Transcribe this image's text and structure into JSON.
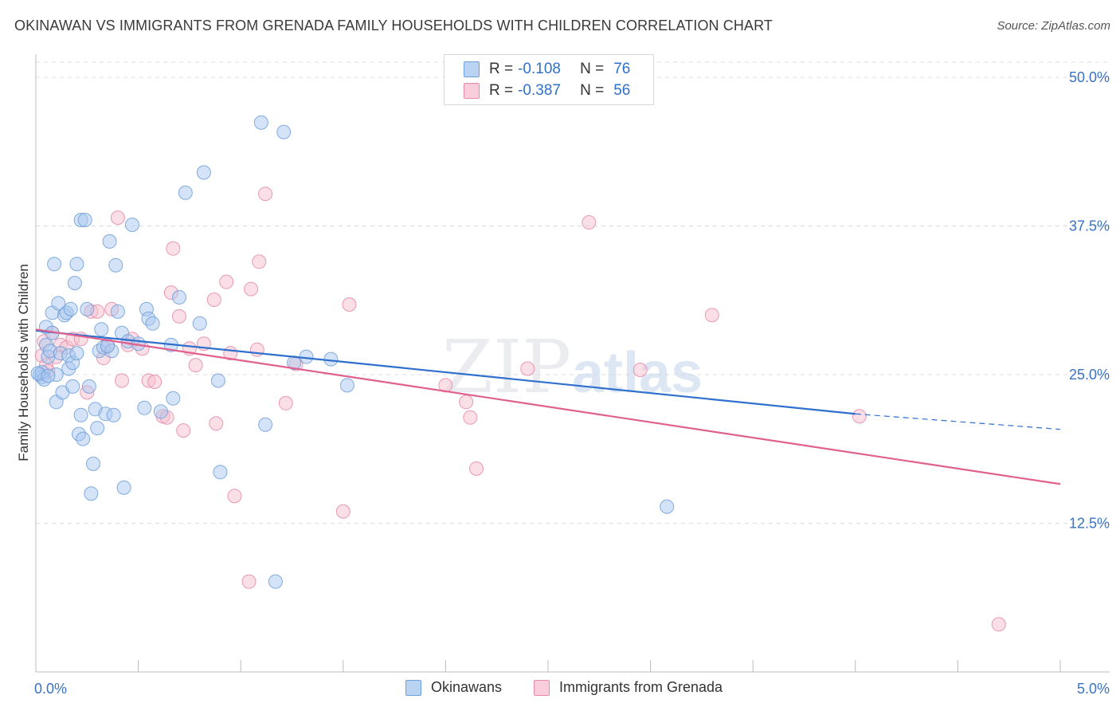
{
  "header": {
    "title": "OKINAWAN VS IMMIGRANTS FROM GRENADA FAMILY HOUSEHOLDS WITH CHILDREN CORRELATION CHART",
    "source": "Source: ZipAtlas.com"
  },
  "legend": {
    "rows": [
      {
        "r_label": "R =",
        "r_value": "-0.108",
        "n_label": "N =",
        "n_value": "76"
      },
      {
        "r_label": "R =",
        "r_value": "-0.387",
        "n_label": "N =",
        "n_value": "56"
      }
    ]
  },
  "bottom_legend": [
    "Okinawans",
    "Immigrants from Grenada"
  ],
  "watermark": {
    "zip": "ZIP",
    "atlas": "atlas"
  },
  "colors": {
    "blue_fill": "#a9c8f0",
    "blue_stroke": "#6d9fd8",
    "blue_line": "#2f6fce",
    "pink_fill": "#f6bfd0",
    "pink_stroke": "#e58aa8",
    "pink_line": "#e0608e",
    "axis_text": "#3a72c4",
    "grid": "#dcdcdc"
  },
  "chart_data": {
    "type": "scatter",
    "title": "OKINAWAN VS IMMIGRANTS FROM GRENADA FAMILY HOUSEHOLDS WITH CHILDREN CORRELATION CHART",
    "xlabel": "",
    "ylabel": "Family Households with Children",
    "xlim": [
      0,
      5
    ],
    "ylim": [
      0,
      52
    ],
    "x_tick_labels": [
      {
        "value": 0,
        "label": "0.0%"
      },
      {
        "value": 5,
        "label": "5.0%"
      }
    ],
    "y_tick_labels": [
      {
        "value": 12.5,
        "label": "12.5%"
      },
      {
        "value": 25,
        "label": "25.0%"
      },
      {
        "value": 37.5,
        "label": "37.5%"
      },
      {
        "value": 50,
        "label": "50.0%"
      }
    ],
    "grid": true,
    "legend_position": "top-center",
    "series": [
      {
        "name": "Okinawans",
        "color": "#a9c8f0",
        "trend": {
          "x": [
            0,
            4.0
          ],
          "y": [
            28.7,
            21.7
          ],
          "dashed_to": [
            5.0,
            20.4
          ]
        },
        "points": [
          [
            0.02,
            25.0
          ],
          [
            0.03,
            24.8
          ],
          [
            0.03,
            25.2
          ],
          [
            0.04,
            24.6
          ],
          [
            0.05,
            27.5
          ],
          [
            0.05,
            29.0
          ],
          [
            0.06,
            26.5
          ],
          [
            0.07,
            27.0
          ],
          [
            0.08,
            28.5
          ],
          [
            0.08,
            30.2
          ],
          [
            0.09,
            34.3
          ],
          [
            0.1,
            25.0
          ],
          [
            0.1,
            22.7
          ],
          [
            0.11,
            31.0
          ],
          [
            0.12,
            26.8
          ],
          [
            0.13,
            23.5
          ],
          [
            0.14,
            30.0
          ],
          [
            0.15,
            30.2
          ],
          [
            0.16,
            26.6
          ],
          [
            0.16,
            25.5
          ],
          [
            0.17,
            30.5
          ],
          [
            0.18,
            24.0
          ],
          [
            0.18,
            26.0
          ],
          [
            0.19,
            32.7
          ],
          [
            0.2,
            34.3
          ],
          [
            0.2,
            26.8
          ],
          [
            0.21,
            20.0
          ],
          [
            0.22,
            21.6
          ],
          [
            0.22,
            38.0
          ],
          [
            0.23,
            19.6
          ],
          [
            0.24,
            38.0
          ],
          [
            0.25,
            30.5
          ],
          [
            0.26,
            24.0
          ],
          [
            0.27,
            15.0
          ],
          [
            0.28,
            17.5
          ],
          [
            0.29,
            22.1
          ],
          [
            0.3,
            20.5
          ],
          [
            0.31,
            27.0
          ],
          [
            0.32,
            28.8
          ],
          [
            0.33,
            27.3
          ],
          [
            0.34,
            21.7
          ],
          [
            0.36,
            36.2
          ],
          [
            0.37,
            27.0
          ],
          [
            0.38,
            21.6
          ],
          [
            0.39,
            34.2
          ],
          [
            0.4,
            30.3
          ],
          [
            0.42,
            28.5
          ],
          [
            0.43,
            15.5
          ],
          [
            0.45,
            27.8
          ],
          [
            0.47,
            37.6
          ],
          [
            0.5,
            27.6
          ],
          [
            0.53,
            22.2
          ],
          [
            0.54,
            30.5
          ],
          [
            0.55,
            29.7
          ],
          [
            0.57,
            29.3
          ],
          [
            0.61,
            21.9
          ],
          [
            0.66,
            27.5
          ],
          [
            0.67,
            23.0
          ],
          [
            0.7,
            31.5
          ],
          [
            0.73,
            40.3
          ],
          [
            0.8,
            29.3
          ],
          [
            0.82,
            42.0
          ],
          [
            0.89,
            24.5
          ],
          [
            0.9,
            16.8
          ],
          [
            1.1,
            46.2
          ],
          [
            1.12,
            20.8
          ],
          [
            1.17,
            7.6
          ],
          [
            1.21,
            45.4
          ],
          [
            1.26,
            26.0
          ],
          [
            1.32,
            26.5
          ],
          [
            1.44,
            26.3
          ],
          [
            1.52,
            24.1
          ],
          [
            3.08,
            13.9
          ],
          [
            0.01,
            25.1
          ],
          [
            0.06,
            24.9
          ],
          [
            0.35,
            27.4
          ]
        ]
      },
      {
        "name": "Immigrants from Grenada",
        "color": "#f6bfd0",
        "trend": {
          "x": [
            0,
            5.0
          ],
          "y": [
            28.8,
            15.8
          ]
        },
        "points": [
          [
            0.03,
            26.6
          ],
          [
            0.04,
            27.8
          ],
          [
            0.05,
            25.8
          ],
          [
            0.06,
            25.3
          ],
          [
            0.08,
            28.5
          ],
          [
            0.1,
            26.5
          ],
          [
            0.12,
            27.5
          ],
          [
            0.15,
            27.3
          ],
          [
            0.18,
            28.0
          ],
          [
            0.22,
            28.0
          ],
          [
            0.25,
            23.5
          ],
          [
            0.27,
            30.3
          ],
          [
            0.3,
            30.3
          ],
          [
            0.33,
            26.4
          ],
          [
            0.35,
            27.5
          ],
          [
            0.37,
            30.5
          ],
          [
            0.4,
            38.2
          ],
          [
            0.42,
            24.5
          ],
          [
            0.45,
            27.5
          ],
          [
            0.47,
            28.0
          ],
          [
            0.52,
            27.2
          ],
          [
            0.55,
            24.5
          ],
          [
            0.58,
            24.4
          ],
          [
            0.62,
            21.5
          ],
          [
            0.64,
            21.4
          ],
          [
            0.66,
            31.9
          ],
          [
            0.67,
            35.6
          ],
          [
            0.7,
            29.9
          ],
          [
            0.72,
            20.3
          ],
          [
            0.75,
            27.2
          ],
          [
            0.78,
            25.8
          ],
          [
            0.82,
            27.6
          ],
          [
            0.87,
            31.3
          ],
          [
            0.88,
            20.9
          ],
          [
            0.93,
            32.8
          ],
          [
            0.95,
            26.8
          ],
          [
            0.97,
            14.8
          ],
          [
            1.04,
            7.6
          ],
          [
            1.05,
            32.2
          ],
          [
            1.08,
            27.1
          ],
          [
            1.09,
            34.5
          ],
          [
            1.12,
            40.2
          ],
          [
            1.22,
            22.6
          ],
          [
            1.27,
            25.9
          ],
          [
            1.5,
            13.5
          ],
          [
            1.53,
            30.9
          ],
          [
            2.0,
            24.1
          ],
          [
            2.1,
            22.7
          ],
          [
            2.12,
            21.4
          ],
          [
            2.15,
            17.1
          ],
          [
            2.4,
            25.5
          ],
          [
            2.7,
            37.8
          ],
          [
            2.95,
            25.4
          ],
          [
            3.3,
            30.0
          ],
          [
            4.02,
            21.5
          ],
          [
            4.7,
            4.0
          ]
        ]
      }
    ]
  }
}
